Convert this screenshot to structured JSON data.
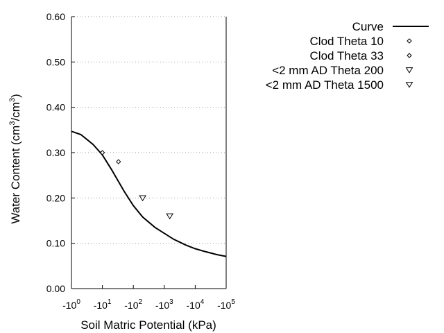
{
  "chart_data": {
    "type": "line",
    "title": "",
    "xlabel": "Soil Matric Potential (kPa)",
    "ylabel_parts": [
      "Water Content (cm",
      "3",
      "/cm",
      "3",
      ")"
    ],
    "x_scale": "log",
    "x_sign": "negative",
    "xlim": [
      1,
      100000
    ],
    "ylim": [
      0,
      0.6
    ],
    "x_ticks": [
      {
        "value": 1,
        "base": "-10",
        "exp": "0"
      },
      {
        "value": 10,
        "base": "-10",
        "exp": "1"
      },
      {
        "value": 100,
        "base": "-10",
        "exp": "2"
      },
      {
        "value": 1000,
        "base": "-10",
        "exp": "3"
      },
      {
        "value": 10000,
        "base": "-10",
        "exp": "4"
      },
      {
        "value": 100000,
        "base": "-10",
        "exp": "5"
      }
    ],
    "y_ticks": [
      {
        "value": 0.0,
        "label": "0.00"
      },
      {
        "value": 0.1,
        "label": "0.10"
      },
      {
        "value": 0.2,
        "label": "0.20"
      },
      {
        "value": 0.3,
        "label": "0.30"
      },
      {
        "value": 0.4,
        "label": "0.40"
      },
      {
        "value": 0.5,
        "label": "0.50"
      },
      {
        "value": 0.6,
        "label": "0.60"
      }
    ],
    "grid": "horizontal dotted",
    "legend_position": "top-right",
    "series": [
      {
        "name": "Curve",
        "kind": "line",
        "x": [
          1,
          2,
          5,
          10,
          20,
          50,
          100,
          200,
          500,
          1000,
          2000,
          5000,
          10000,
          20000,
          50000,
          100000
        ],
        "y": [
          0.347,
          0.34,
          0.318,
          0.295,
          0.262,
          0.215,
          0.183,
          0.158,
          0.135,
          0.122,
          0.109,
          0.096,
          0.088,
          0.082,
          0.075,
          0.071
        ]
      },
      {
        "name": "Clod Theta 10",
        "kind": "marker",
        "marker": "diamond",
        "x": [
          10
        ],
        "y": [
          0.3
        ]
      },
      {
        "name": "Clod Theta 33",
        "kind": "marker",
        "marker": "diamond",
        "x": [
          33
        ],
        "y": [
          0.28
        ]
      },
      {
        "name": "<2 mm AD Theta 200",
        "kind": "marker",
        "marker": "triangle-down",
        "x": [
          200
        ],
        "y": [
          0.2
        ]
      },
      {
        "name": "<2 mm AD Theta 1500",
        "kind": "marker",
        "marker": "triangle-down",
        "x": [
          1500
        ],
        "y": [
          0.16
        ]
      }
    ]
  }
}
